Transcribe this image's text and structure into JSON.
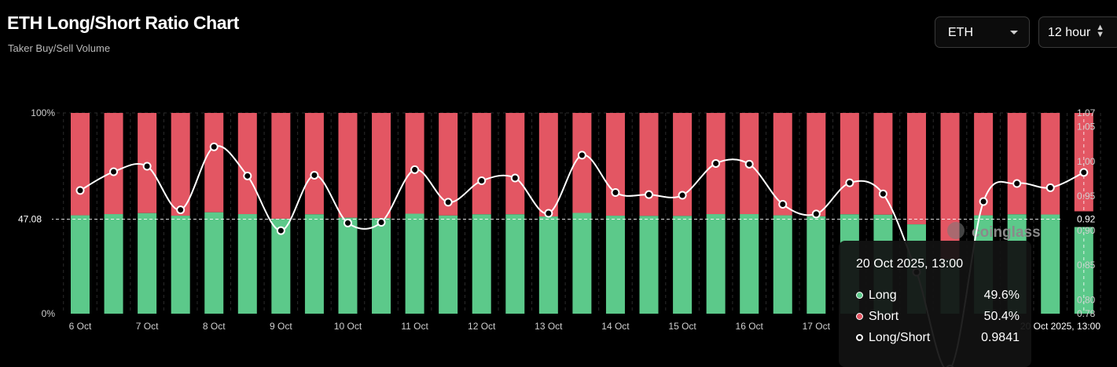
{
  "header": {
    "title": "ETH Long/Short Ratio Chart",
    "subtitle": "Taker Buy/Sell Volume"
  },
  "controls": {
    "symbol": "ETH",
    "interval": "12 hour"
  },
  "watermark": "coinglass",
  "colors": {
    "long": "#5cc98a",
    "short": "#e35663",
    "ratio_line": "#ffffff",
    "background": "#000000"
  },
  "chart_data": {
    "type": "bar",
    "stacked_percent": true,
    "x_tick_labels": [
      "6 Oct",
      "7 Oct",
      "8 Oct",
      "9 Oct",
      "10 Oct",
      "11 Oct",
      "12 Oct",
      "13 Oct",
      "14 Oct",
      "15 Oct",
      "16 Oct",
      "17 Oct"
    ],
    "left_axis": {
      "ticks": [
        "100%",
        "0%"
      ],
      "ylim": [
        0,
        100
      ],
      "crosshair_label": "47.08"
    },
    "right_axis": {
      "ticks": [
        "1.07",
        "1.05",
        "1.00",
        "0.95",
        "0.92",
        "0.90",
        "0.85",
        "0.80",
        "0.78"
      ],
      "ylim": [
        0.78,
        1.07
      ],
      "crosshair_label": "0.92"
    },
    "crosshair_time_label": "20 Oct 2025, 13:00",
    "series": [
      {
        "name": "Long",
        "values": [
          49.0,
          49.6,
          50.1,
          48.8,
          50.5,
          49.6,
          47.3,
          49.5,
          47.8,
          47.6,
          49.8,
          48.9,
          49.5,
          49.5,
          48.4,
          50.2,
          48.8,
          48.7,
          48.7,
          49.6,
          49.6,
          49.0,
          48.5,
          49.5,
          49.3,
          44.5,
          27.0,
          49.0,
          49.5,
          49.4,
          49.6
        ]
      },
      {
        "name": "Short",
        "values": [
          51.0,
          50.4,
          49.9,
          51.2,
          49.5,
          50.4,
          52.7,
          50.5,
          52.2,
          52.4,
          50.2,
          51.1,
          50.5,
          50.5,
          51.6,
          49.8,
          51.2,
          51.3,
          51.3,
          50.4,
          50.4,
          51.0,
          51.5,
          50.5,
          50.7,
          55.5,
          73.0,
          51.0,
          50.5,
          50.6,
          50.4
        ]
      },
      {
        "name": "Long/Short",
        "values": [
          0.958,
          0.985,
          0.993,
          0.93,
          1.021,
          0.979,
          0.9,
          0.98,
          0.911,
          0.912,
          0.988,
          0.941,
          0.972,
          0.976,
          0.925,
          1.009,
          0.955,
          0.952,
          0.951,
          0.997,
          0.996,
          0.938,
          0.924,
          0.969,
          0.953,
          0.84,
          0.7,
          0.942,
          0.968,
          0.962,
          0.9841
        ]
      }
    ]
  },
  "tooltip": {
    "title": "20 Oct 2025, 13:00",
    "rows": [
      {
        "name": "Long",
        "value": "49.6%"
      },
      {
        "name": "Short",
        "value": "50.4%"
      },
      {
        "name": "Long/Short",
        "value": "0.9841"
      }
    ]
  }
}
